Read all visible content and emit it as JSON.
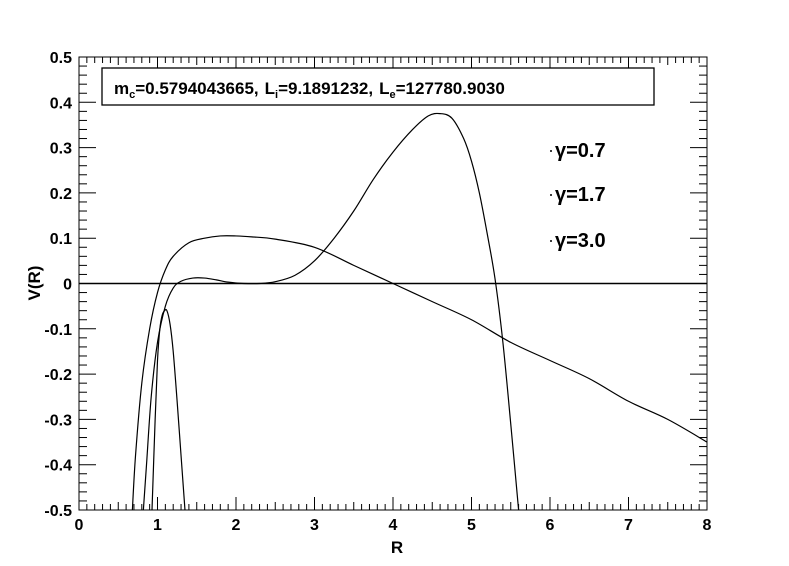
{
  "chart_data": {
    "type": "line",
    "title": "",
    "xlabel": "R",
    "ylabel": "V(R)",
    "xlim": [
      0,
      8
    ],
    "ylim": [
      -0.5,
      0.5
    ],
    "x_ticks": [
      "0",
      "1",
      "2",
      "3",
      "4",
      "5",
      "6",
      "7",
      "8"
    ],
    "y_ticks": [
      "-0.5",
      "-0.4",
      "-0.3",
      "-0.2",
      "-0.1",
      "0",
      "0.1",
      "0.2",
      "0.3",
      "0.4",
      "0.5"
    ],
    "grid": false,
    "legend_position": "right",
    "info_box": {
      "m_label": "m",
      "m_sub": "c",
      "m_value": "=0.5794043665,",
      "li_label": "L",
      "li_sub": "i",
      "li_value": "=9.1891232,",
      "le_label": "L",
      "le_sub": "e",
      "le_value": "=127780.9030"
    },
    "series": [
      {
        "name": "γ=0.7",
        "x": [
          0.68,
          0.72,
          0.8,
          0.9,
          1.0,
          1.1,
          1.2,
          1.4,
          1.6,
          1.8,
          2.0,
          2.2,
          2.5,
          3.0,
          3.5,
          4.0,
          4.5,
          5.0,
          5.5,
          6.0,
          6.5,
          7.0,
          7.5,
          8.0
        ],
        "y": [
          -0.5,
          -0.38,
          -0.22,
          -0.1,
          -0.02,
          0.03,
          0.06,
          0.09,
          0.1,
          0.105,
          0.105,
          0.103,
          0.098,
          0.08,
          0.04,
          0.0,
          -0.04,
          -0.08,
          -0.13,
          -0.17,
          -0.21,
          -0.26,
          -0.3,
          -0.35
        ]
      },
      {
        "name": "γ=1.7",
        "x": [
          0.82,
          0.86,
          0.92,
          1.0,
          1.1,
          1.2,
          1.3,
          1.45,
          1.6,
          1.75,
          1.9,
          2.1,
          2.3,
          2.5,
          2.75,
          3.0,
          3.25,
          3.5,
          3.75,
          4.0,
          4.25,
          4.45,
          4.6,
          4.75,
          4.9,
          5.0,
          5.1,
          5.2,
          5.3,
          5.4,
          5.5,
          5.6
        ],
        "y": [
          -0.5,
          -0.4,
          -0.25,
          -0.13,
          -0.05,
          -0.01,
          0.005,
          0.012,
          0.012,
          0.008,
          0.003,
          0.0,
          0.0,
          0.004,
          0.018,
          0.05,
          0.1,
          0.16,
          0.23,
          0.29,
          0.34,
          0.37,
          0.375,
          0.365,
          0.32,
          0.27,
          0.2,
          0.11,
          0.01,
          -0.13,
          -0.31,
          -0.5
        ]
      },
      {
        "name": "γ=3.0",
        "x": [
          0.93,
          0.97,
          1.0,
          1.03,
          1.06,
          1.09,
          1.12,
          1.16,
          1.2,
          1.25,
          1.3,
          1.35
        ],
        "y": [
          -0.5,
          -0.3,
          -0.17,
          -0.1,
          -0.07,
          -0.06,
          -0.06,
          -0.09,
          -0.15,
          -0.26,
          -0.38,
          -0.5
        ]
      }
    ],
    "reference_lines": [
      {
        "axis": "y",
        "value": 0
      }
    ]
  }
}
